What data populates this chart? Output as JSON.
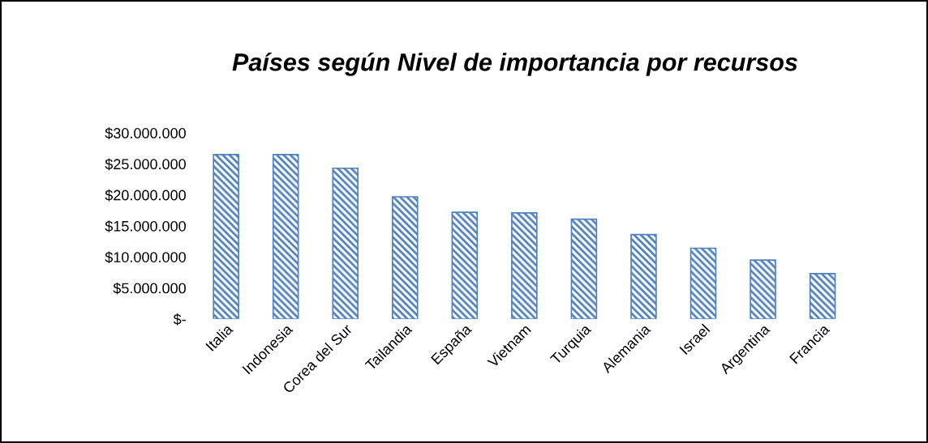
{
  "chart_data": {
    "type": "bar",
    "title": "Países según Nivel de importancia por recursos",
    "categories": [
      "Italia",
      "Indonesia",
      "Corea del Sur",
      "Tailandia",
      "España",
      "Vietnam",
      "Turquia",
      "Alemania",
      "Israel",
      "Argentina",
      "Francia"
    ],
    "values": [
      26500000,
      26500000,
      24300000,
      19700000,
      17200000,
      17100000,
      16100000,
      13600000,
      11400000,
      9500000,
      7300000
    ],
    "color": "#4f81bd",
    "ylim": [
      0,
      30000000
    ],
    "yticks": [
      {
        "value": 0,
        "label": "$-"
      },
      {
        "value": 5000000,
        "label": "$5.000.000"
      },
      {
        "value": 10000000,
        "label": "$10.000.000"
      },
      {
        "value": 15000000,
        "label": "$15.000.000"
      },
      {
        "value": 20000000,
        "label": "$20.000.000"
      },
      {
        "value": 25000000,
        "label": "$25.000.000"
      },
      {
        "value": 30000000,
        "label": "$30.000.000"
      }
    ],
    "grid": false,
    "legend": false
  }
}
